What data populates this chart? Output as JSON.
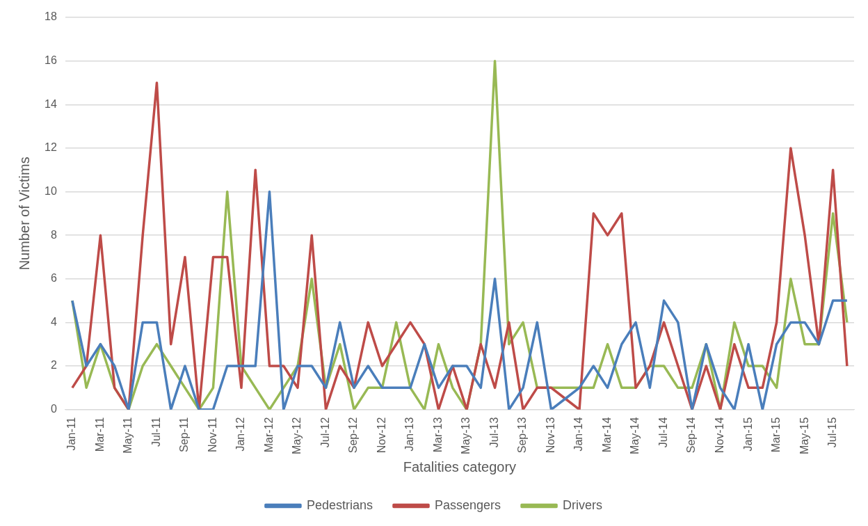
{
  "chart_data": {
    "type": "line",
    "xlabel": "Fatalities category",
    "ylabel": "Number of Victims",
    "categories": [
      "Jan-11",
      null,
      "Mar-11",
      null,
      "May-11",
      null,
      "Jul-11",
      null,
      "Sep-11",
      null,
      "Nov-11",
      null,
      "Jan-12",
      null,
      "Mar-12",
      null,
      "May-12",
      null,
      "Jul-12",
      null,
      "Sep-12",
      null,
      "Nov-12",
      null,
      "Jan-13",
      null,
      "Mar-13",
      null,
      "May-13",
      null,
      "Jul-13",
      null,
      "Sep-13",
      null,
      "Nov-13",
      null,
      "Jan-14",
      null,
      "Mar-14",
      null,
      "May-14",
      null,
      "Jul-14",
      null,
      "Sep-14",
      null,
      "Nov-14",
      null,
      "Jan-15",
      null,
      "Mar-15",
      null,
      "May-15",
      null,
      "Jul-15",
      null
    ],
    "ylim": [
      0,
      18
    ],
    "yticks": [
      0,
      2,
      4,
      6,
      8,
      10,
      12,
      14,
      16,
      18
    ],
    "grid": "y",
    "legend": "bottom",
    "marker": "none",
    "line_style": "solid",
    "series": [
      {
        "name": "Pedestrians",
        "color": "#4a7ebb",
        "values": [
          5,
          2,
          3,
          2,
          0,
          4,
          4,
          0,
          2,
          0,
          0,
          2,
          2,
          2,
          10,
          0,
          2,
          2,
          1,
          4,
          1,
          2,
          1,
          1,
          1,
          3,
          1,
          2,
          2,
          1,
          6,
          0,
          1,
          4,
          0,
          0.5,
          1,
          2,
          1,
          3,
          4,
          1,
          5,
          4,
          0,
          3,
          1,
          0,
          3,
          0,
          3,
          4,
          4,
          3,
          5,
          5
        ]
      },
      {
        "name": "Passengers",
        "color": "#be4b48",
        "values": [
          1,
          2,
          8,
          1,
          0,
          8,
          15,
          3,
          7,
          0,
          7,
          7,
          1,
          11,
          2,
          2,
          1,
          8,
          0,
          2,
          1,
          4,
          2,
          3,
          4,
          3,
          0,
          2,
          0,
          3,
          1,
          4,
          0,
          1,
          1,
          0.5,
          0,
          9,
          8,
          9,
          1,
          2,
          4,
          2,
          0,
          2,
          0,
          3,
          1,
          1,
          4,
          12,
          8,
          3,
          11,
          2
        ]
      },
      {
        "name": "Drivers",
        "color": "#98b954",
        "values": [
          5,
          1,
          3,
          1,
          0,
          2,
          3,
          2,
          1,
          0,
          1,
          10,
          2,
          1,
          0,
          1,
          2,
          6,
          1,
          3,
          0,
          1,
          1,
          4,
          1,
          0,
          3,
          1,
          0,
          3,
          16,
          3,
          4,
          1,
          1,
          1,
          1,
          1,
          3,
          1,
          1,
          2,
          2,
          1,
          1,
          3,
          0,
          4,
          2,
          2,
          1,
          6,
          3,
          3,
          9,
          4
        ]
      }
    ]
  }
}
